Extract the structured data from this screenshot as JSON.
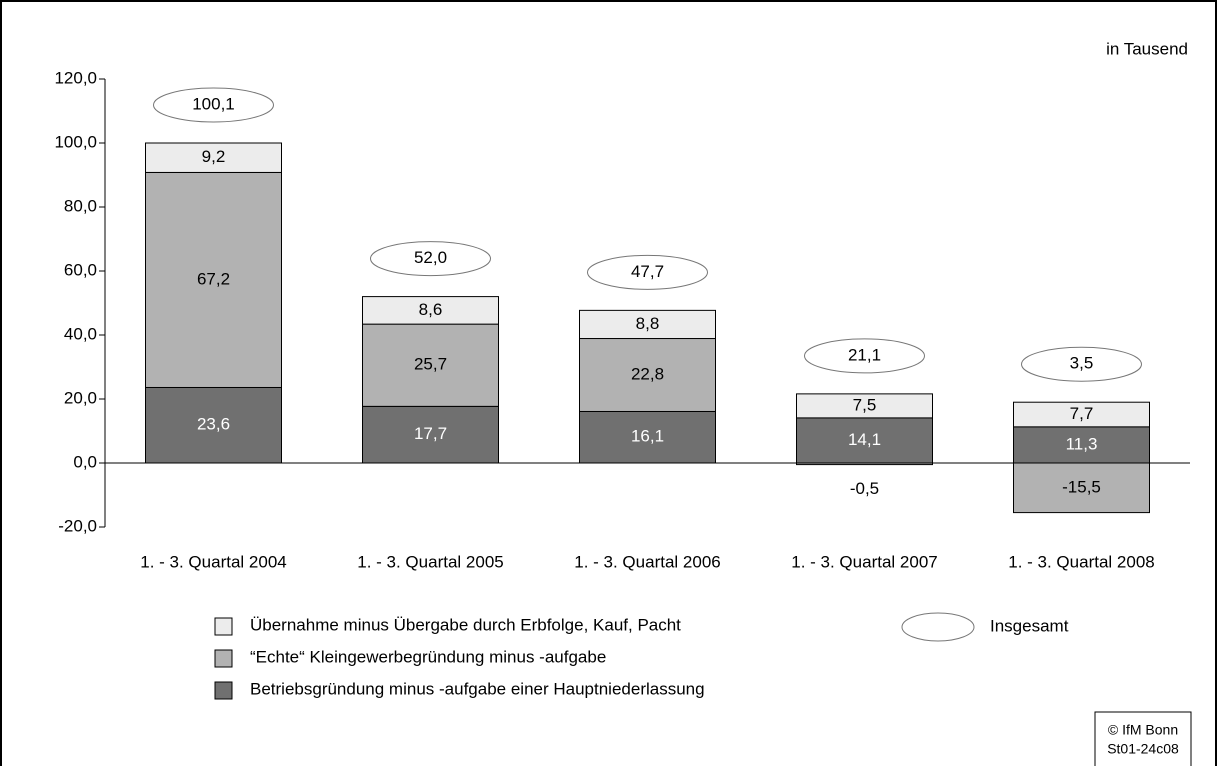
{
  "chart_data": {
    "type": "bar",
    "stacked": true,
    "unit_label": "in Tausend",
    "categories": [
      "1. - 3. Quartal 2004",
      "1. - 3. Quartal 2005",
      "1. - 3. Quartal 2006",
      "1. - 3. Quartal 2007",
      "1. - 3. Quartal 2008"
    ],
    "series": [
      {
        "name": "Betriebsgründung minus -aufgabe einer Hauptniederlassung",
        "color": "#707070",
        "label_color": "#ffffff",
        "values": [
          23.6,
          17.7,
          16.1,
          14.1,
          11.3
        ],
        "value_labels": [
          "23,6",
          "17,7",
          "16,1",
          "14,1",
          "11,3"
        ]
      },
      {
        "name": "“Echte“ Kleingewerbegründung minus -aufgabe",
        "color": "#b2b2b2",
        "label_color": "#000000",
        "values": [
          67.2,
          25.7,
          22.8,
          -0.5,
          -15.5
        ],
        "value_labels": [
          "67,2",
          "25,7",
          "22,8",
          "-0,5",
          "-15,5"
        ]
      },
      {
        "name": "Übernahme minus Übergabe durch Erbfolge, Kauf, Pacht",
        "color": "#ececec",
        "label_color": "#000000",
        "values": [
          9.2,
          8.6,
          8.8,
          7.5,
          7.7
        ],
        "value_labels": [
          "9,2",
          "8,6",
          "8,8",
          "7,5",
          "7,7"
        ]
      }
    ],
    "totals": {
      "name": "Insgesamt",
      "values": [
        100.1,
        52.0,
        47.7,
        21.1,
        3.5
      ],
      "value_labels": [
        "100,1",
        "52,0",
        "47,7",
        "21,1",
        "3,5"
      ]
    },
    "ylim": [
      -20,
      120
    ],
    "yticks": [
      {
        "value": -20,
        "label": "-20,0"
      },
      {
        "value": 0,
        "label": "0,0"
      },
      {
        "value": 20,
        "label": "20,0"
      },
      {
        "value": 40,
        "label": "40,0"
      },
      {
        "value": 60,
        "label": "60,0"
      },
      {
        "value": 80,
        "label": "80,0"
      },
      {
        "value": 100,
        "label": "100,0"
      },
      {
        "value": 120,
        "label": "120,0"
      }
    ],
    "grid": false,
    "source": [
      "© IfM Bonn",
      "St01-24c08"
    ]
  }
}
